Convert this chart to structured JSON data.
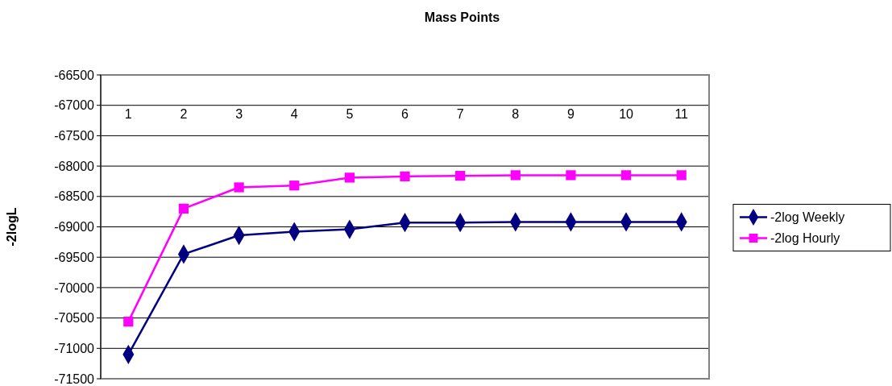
{
  "chart_data": {
    "type": "line",
    "title": "Mass Points",
    "ylabel": "-2logL",
    "categories": [
      "1",
      "2",
      "3",
      "4",
      "5",
      "6",
      "7",
      "8",
      "9",
      "10",
      "11"
    ],
    "series": [
      {
        "name": "-2log Weekly",
        "color": "#000080",
        "marker": "diamond",
        "values": [
          -71100,
          -69450,
          -69140,
          -69080,
          -69040,
          -68930,
          -68930,
          -68920,
          -68920,
          -68920,
          -68920
        ]
      },
      {
        "name": "-2log Hourly",
        "color": "#ff00ff",
        "marker": "square",
        "values": [
          -70560,
          -68700,
          -68350,
          -68320,
          -68190,
          -68170,
          -68160,
          -68150,
          -68150,
          -68150,
          -68150
        ]
      }
    ],
    "ylim": [
      -71500,
      -66500
    ],
    "yticks": [
      -71500,
      -71000,
      -70500,
      -70000,
      -69500,
      -69000,
      -68500,
      -68000,
      -67500,
      -67000,
      -66500
    ],
    "grid": "y",
    "legend": "right"
  }
}
